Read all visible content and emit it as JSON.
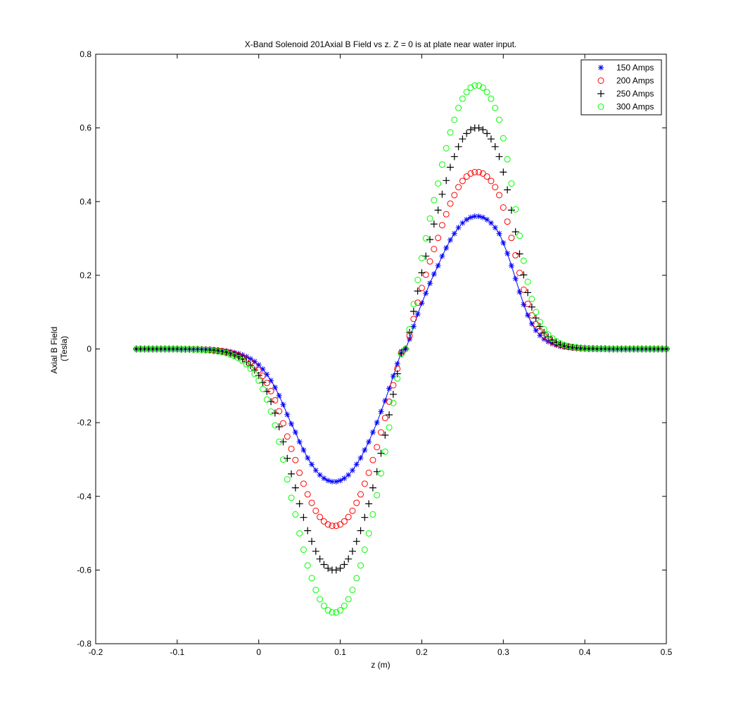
{
  "chart_data": {
    "type": "scatter",
    "title": "X-Band Solenoid 201Axial B Field vs z.  Z = 0 is at plate near water input.",
    "xlabel": "z (m)",
    "ylabel_lines": [
      "Axial B Field",
      "(Tesla)"
    ],
    "xlim": [
      -0.2,
      0.5
    ],
    "ylim": [
      -0.8,
      0.8
    ],
    "xticks": [
      -0.2,
      -0.1,
      0,
      0.1,
      0.2,
      0.3,
      0.4,
      0.5
    ],
    "xtick_labels": [
      "-0.2",
      "-0.1",
      "0",
      "0.1",
      "0.2",
      "0.3",
      "0.4",
      "0.5"
    ],
    "yticks": [
      -0.8,
      -0.6,
      -0.4,
      -0.2,
      0,
      0.2,
      0.4,
      0.6,
      0.8
    ],
    "ytick_labels": [
      "-0.8",
      "-0.6",
      "-0.4",
      "-0.2",
      "0",
      "0.2",
      "0.4",
      "0.6",
      "0.8"
    ],
    "grid": false,
    "legend_position": "top-right",
    "x_start": -0.15,
    "x_step": 0.005,
    "normalized_profile": [
      0.0,
      0.0,
      0.0,
      0.0,
      0.0,
      0.0,
      0.0,
      0.0,
      0.0,
      0.0,
      0.0,
      -0.001,
      -0.001,
      -0.001,
      -0.002,
      -0.002,
      -0.003,
      -0.004,
      -0.005,
      -0.007,
      -0.009,
      -0.012,
      -0.016,
      -0.021,
      -0.027,
      -0.035,
      -0.045,
      -0.058,
      -0.075,
      -0.095,
      -0.12,
      -0.152,
      -0.192,
      -0.238,
      -0.29,
      -0.352,
      -0.42,
      -0.495,
      -0.565,
      -0.628,
      -0.7,
      -0.762,
      -0.822,
      -0.87,
      -0.915,
      -0.95,
      -0.975,
      -0.992,
      -1.0,
      -1.0,
      -0.992,
      -0.975,
      -0.95,
      -0.915,
      -0.87,
      -0.822,
      -0.762,
      -0.7,
      -0.628,
      -0.555,
      -0.472,
      -0.39,
      -0.298,
      -0.205,
      -0.112,
      -0.02,
      0.0,
      0.075,
      0.17,
      0.262,
      0.345,
      0.42,
      0.495,
      0.565,
      0.628,
      0.7,
      0.762,
      0.822,
      0.87,
      0.915,
      0.95,
      0.975,
      0.992,
      1.0,
      1.0,
      0.992,
      0.975,
      0.95,
      0.915,
      0.87,
      0.8,
      0.72,
      0.628,
      0.53,
      0.43,
      0.335,
      0.255,
      0.19,
      0.14,
      0.102,
      0.075,
      0.055,
      0.04,
      0.029,
      0.021,
      0.015,
      0.011,
      0.008,
      0.006,
      0.004,
      0.003,
      0.002,
      0.002,
      0.001,
      0.001,
      0.001,
      0.0,
      0.0,
      0.0,
      0.0,
      0.0,
      0.0,
      0.0,
      0.0,
      0.0,
      0.0,
      0.0,
      0.0,
      0.0,
      0.0,
      0.0
    ],
    "series": [
      {
        "name": "150 Amps",
        "peak": 0.36,
        "marker": "asterisk",
        "color": "#0000ff",
        "connected": true
      },
      {
        "name": "200 Amps",
        "peak": 0.48,
        "marker": "circle",
        "color": "#ff0000",
        "connected": false
      },
      {
        "name": "250 Amps",
        "peak": 0.6,
        "marker": "plus",
        "color": "#000000",
        "connected": false
      },
      {
        "name": "300 Amps",
        "peak": 0.715,
        "marker": "circle",
        "color": "#00ff00",
        "connected": false
      }
    ]
  }
}
